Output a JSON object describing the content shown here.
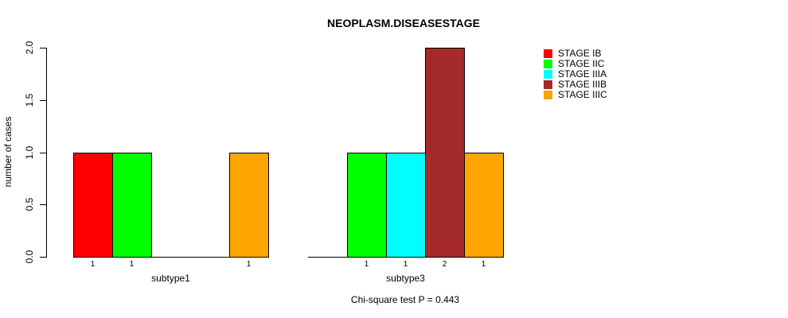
{
  "chart_data": {
    "type": "bar",
    "title": "NEOPLASM.DISEASESTAGE",
    "xlabel": "",
    "ylabel": "number of cases",
    "categories": [
      "subtype1",
      "subtype3"
    ],
    "series": [
      {
        "name": "STAGE IB",
        "color": "#FF0000",
        "values": [
          1,
          0
        ]
      },
      {
        "name": "STAGE IIC",
        "color": "#00FF00",
        "values": [
          1,
          1
        ]
      },
      {
        "name": "STAGE IIIA",
        "color": "#00FFFF",
        "values": [
          0,
          1
        ]
      },
      {
        "name": "STAGE IIIB",
        "color": "#A52A2A",
        "values": [
          0,
          2
        ]
      },
      {
        "name": "STAGE IIIC",
        "color": "#FFA500",
        "values": [
          1,
          1
        ]
      }
    ],
    "ylim": [
      0,
      2
    ],
    "yticks": [
      {
        "label": "0.0",
        "value": 0.0
      },
      {
        "label": "0.5",
        "value": 0.5
      },
      {
        "label": "1.0",
        "value": 1.0
      },
      {
        "label": "1.5",
        "value": 1.5
      },
      {
        "label": "2.0",
        "value": 2.0
      }
    ],
    "bar_value_labels": true,
    "grid": false,
    "legend_position": "top-right",
    "annotation": "Chi-square test P = 0.443",
    "colors": {
      "background": "#FFFFFF",
      "axis": "#000000",
      "text": "#000000"
    }
  }
}
